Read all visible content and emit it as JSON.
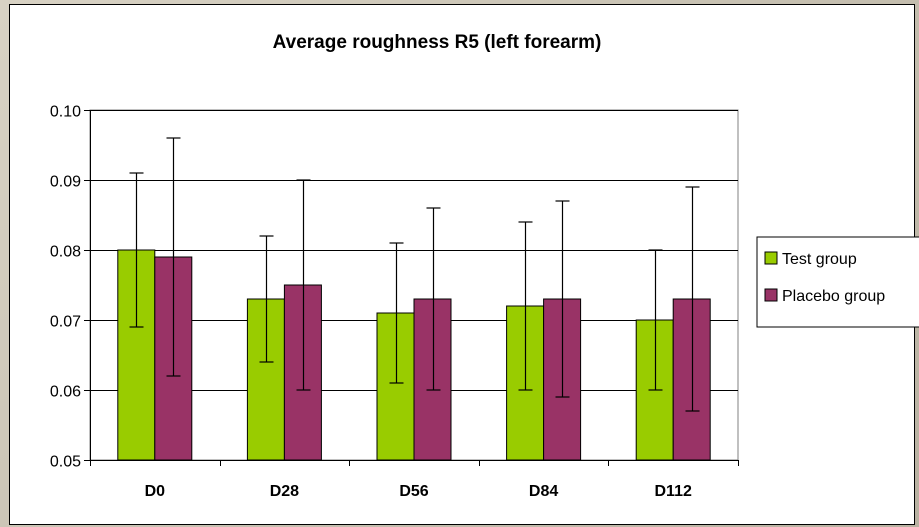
{
  "chart_data": {
    "type": "bar",
    "title": "Average roughness R5 (left forearm)",
    "xlabel": "",
    "ylabel": "",
    "categories": [
      "D0",
      "D28",
      "D56",
      "D84",
      "D112"
    ],
    "ylim": [
      0.05,
      0.1
    ],
    "yticks": [
      "0.05",
      "0.06",
      "0.07",
      "0.08",
      "0.09",
      "0.10"
    ],
    "grid": true,
    "legend_position": "right",
    "series": [
      {
        "name": "Test group",
        "color": "#99cc00",
        "values": [
          0.08,
          0.073,
          0.071,
          0.072,
          0.07
        ],
        "err_high": [
          0.091,
          0.082,
          0.081,
          0.084,
          0.08
        ],
        "err_low": [
          0.069,
          0.064,
          0.061,
          0.06,
          0.06
        ]
      },
      {
        "name": "Placebo group",
        "color": "#993366",
        "values": [
          0.079,
          0.075,
          0.073,
          0.073,
          0.073
        ],
        "err_high": [
          0.096,
          0.09,
          0.086,
          0.087,
          0.089
        ],
        "err_low": [
          0.062,
          0.06,
          0.06,
          0.059,
          0.057
        ]
      }
    ]
  }
}
